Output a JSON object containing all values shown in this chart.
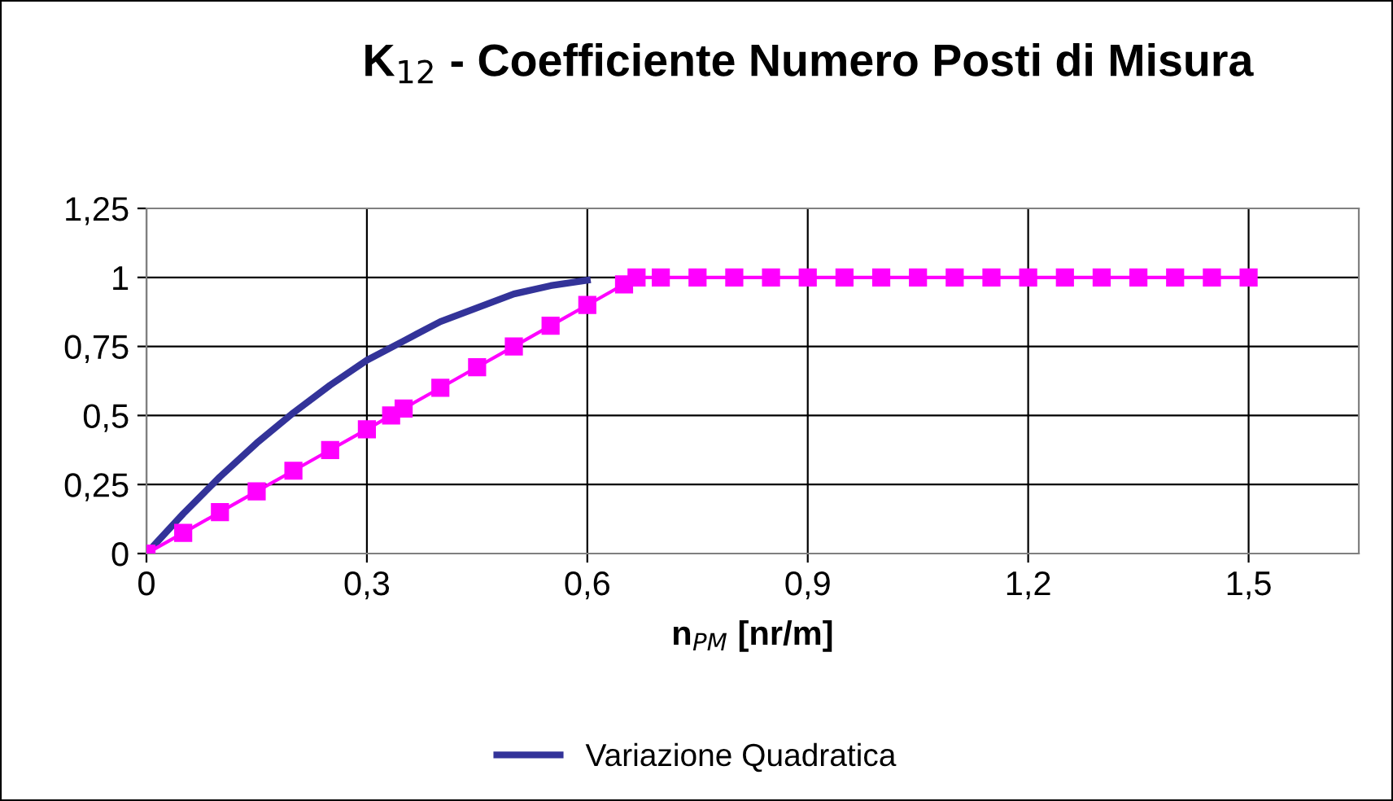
{
  "chart_data": {
    "type": "line",
    "title": "K$_{12}$ - Coefficiente Numero Posti di Misura",
    "xlabel": "n$_{PM}$ [nr/m]",
    "xlim": [
      0,
      1.65
    ],
    "ylim": [
      0,
      1.25
    ],
    "xticks": [
      0,
      {
        "value": 0.3,
        "label": "0,3"
      },
      {
        "value": 0.6,
        "label": "0,6"
      },
      {
        "value": 0.9,
        "label": "0,9"
      },
      {
        "value": 1.2,
        "label": "1,2"
      },
      {
        "value": 1.5,
        "label": "1,5"
      }
    ],
    "yticks": [
      0,
      {
        "value": 0.25,
        "label": "0,25"
      },
      {
        "value": 0.5,
        "label": "0,5"
      },
      {
        "value": 0.75,
        "label": "0,75"
      },
      1,
      {
        "value": 1.25,
        "label": "1,25"
      }
    ],
    "grid": true,
    "legend": "bottom",
    "line_style": "solid",
    "series": [
      {
        "name": "Variazione Quadratica",
        "color": "#333399",
        "marker": "none",
        "x": [
          0,
          0.05,
          0.1,
          0.15,
          0.2,
          0.25,
          0.3,
          0.35,
          0.4,
          0.45,
          0.5,
          0.55,
          0.6
        ],
        "values": [
          0,
          0.144,
          0.278,
          0.4,
          0.51,
          0.61,
          0.7,
          0.77,
          0.84,
          0.89,
          0.94,
          0.97,
          0.99
        ]
      },
      {
        "color": "#ff00ff",
        "marker": "square",
        "x": [
          0,
          0.05,
          0.1,
          0.15,
          0.2,
          0.25,
          0.3,
          0.333,
          0.35,
          0.4,
          0.45,
          0.5,
          0.55,
          0.6,
          0.65,
          0.667,
          0.7,
          0.75,
          0.8,
          0.85,
          0.9,
          0.95,
          1.0,
          1.05,
          1.1,
          1.15,
          1.2,
          1.25,
          1.3,
          1.35,
          1.4,
          1.45,
          1.5
        ],
        "values": [
          0,
          0.075,
          0.15,
          0.225,
          0.3,
          0.375,
          0.45,
          0.5,
          0.525,
          0.6,
          0.675,
          0.75,
          0.825,
          0.9,
          0.975,
          1,
          1,
          1,
          1,
          1,
          1,
          1,
          1,
          1,
          1,
          1,
          1,
          1,
          1,
          1,
          1,
          1,
          1
        ]
      }
    ]
  }
}
